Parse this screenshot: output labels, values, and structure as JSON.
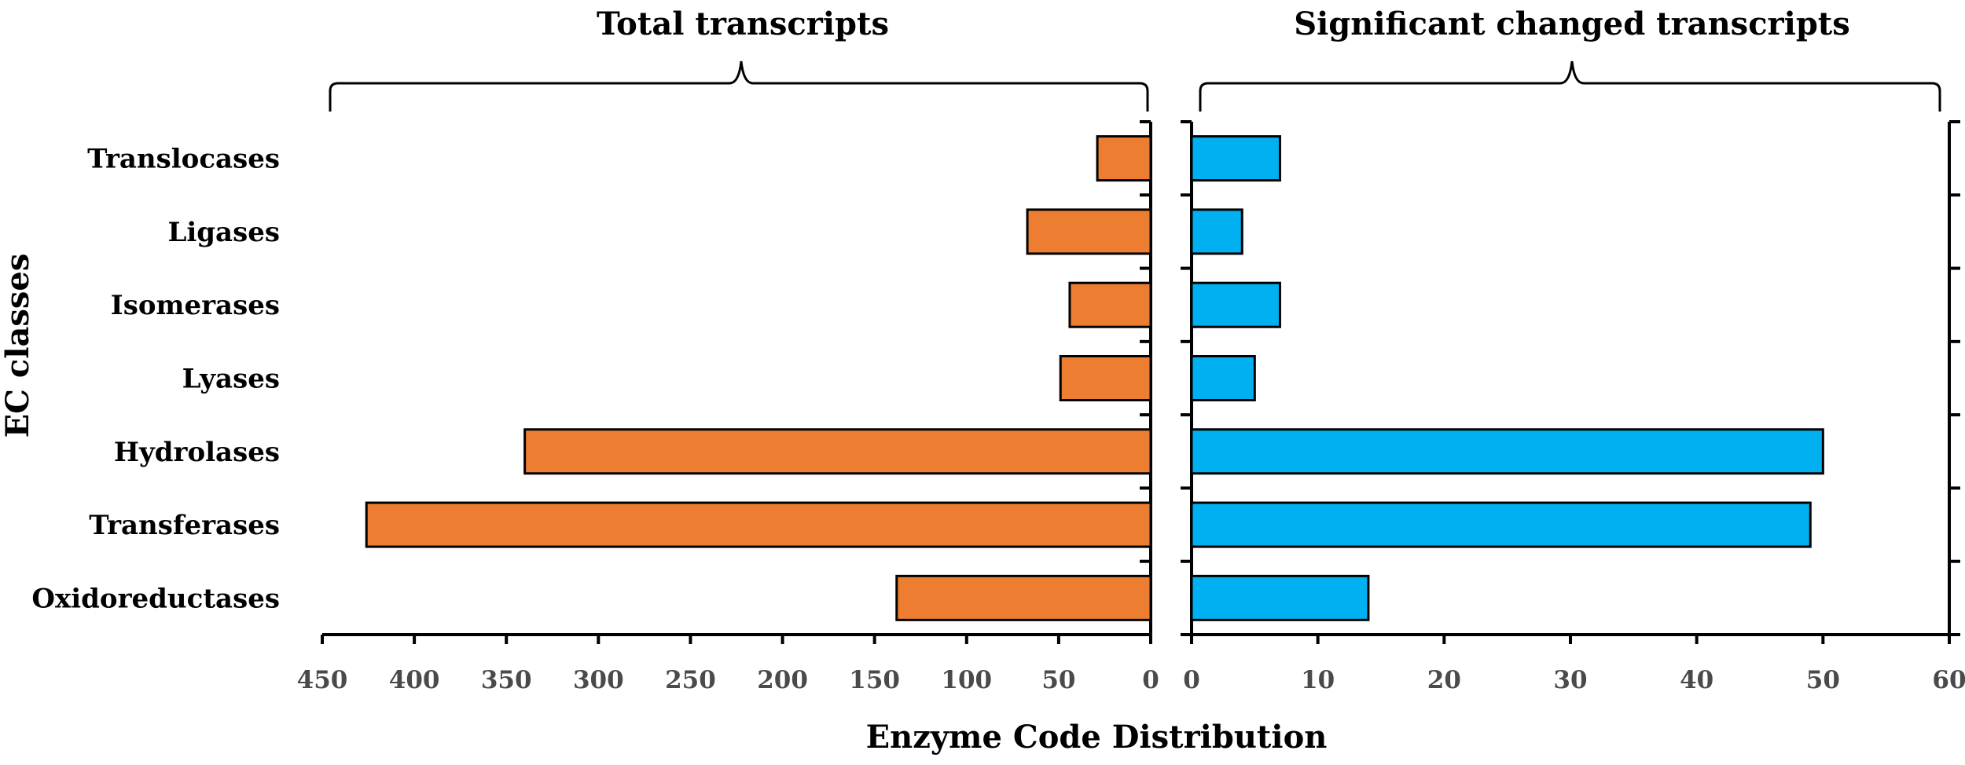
{
  "chart_data": {
    "type": "bar",
    "orientation": "horizontal",
    "categories": [
      "Translocases",
      "Ligases",
      "Isomerases",
      "Lyases",
      "Hydrolases",
      "Transferases",
      "Oxidoreductases"
    ],
    "ylabel": "EC classes",
    "xlabel": "Enzyme Code Distribution",
    "panels": [
      {
        "title": "Total transcripts",
        "values": [
          29,
          67,
          44,
          49,
          340,
          426,
          138
        ],
        "xlim": [
          450,
          0
        ],
        "xticks": [
          450,
          400,
          350,
          300,
          250,
          200,
          150,
          100,
          50,
          0
        ],
        "reversed": true,
        "color": "#ed7d31"
      },
      {
        "title": "Significant changed transcripts",
        "values": [
          7,
          4,
          7,
          5,
          50,
          49,
          14
        ],
        "xlim": [
          0,
          60
        ],
        "xticks": [
          0,
          10,
          20,
          30,
          40,
          50,
          60
        ],
        "reversed": false,
        "color": "#00b0f0"
      }
    ]
  }
}
